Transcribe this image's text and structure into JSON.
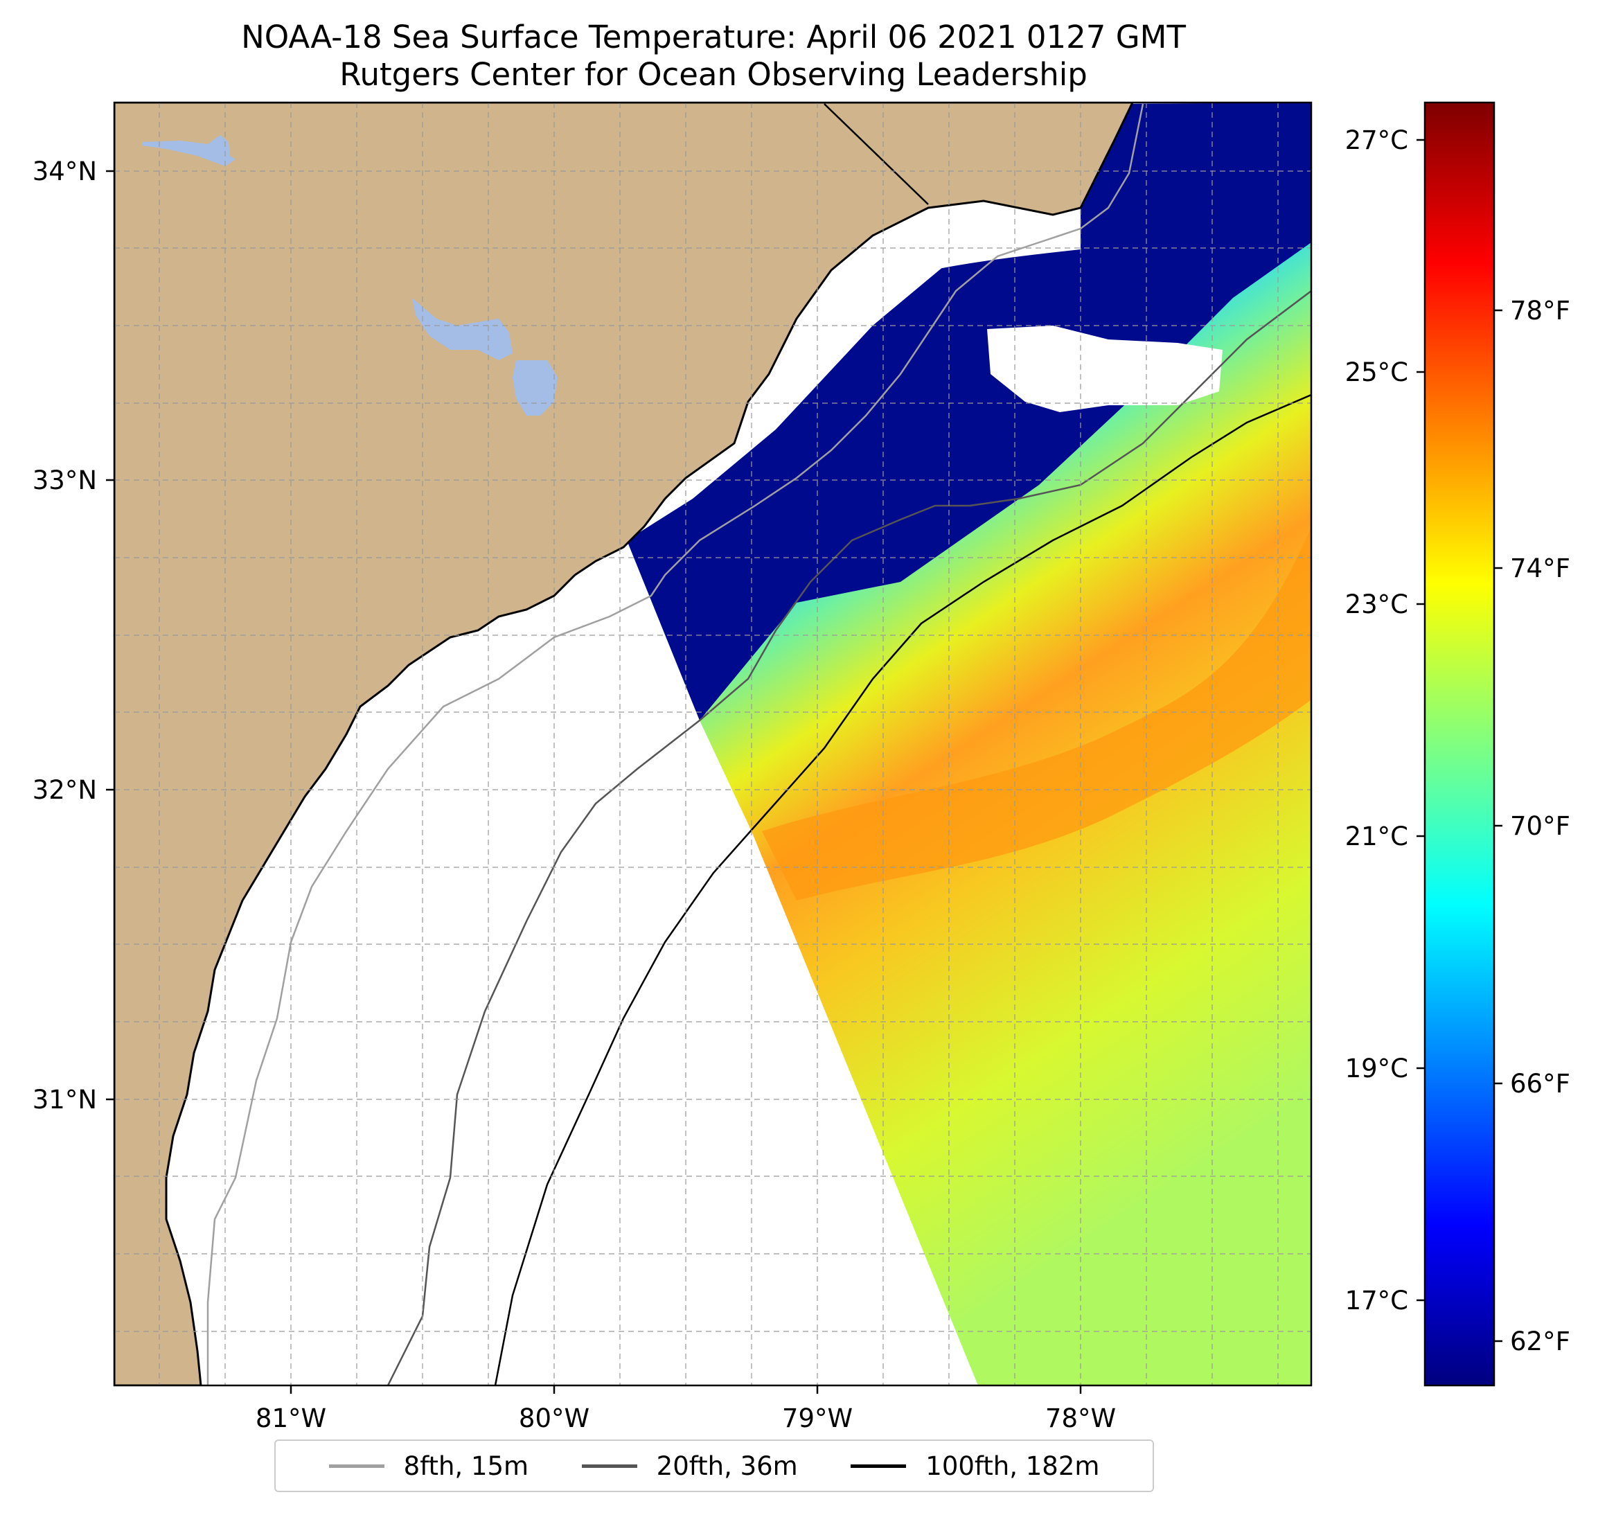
{
  "title": {
    "line1": "NOAA-18 Sea Surface Temperature: April 06 2021 0127 GMT",
    "line2": "Rutgers Center for Ocean Observing Leadership"
  },
  "axes": {
    "lon_ticks": [
      "81°W",
      "80°W",
      "79°W",
      "78°W"
    ],
    "lat_ticks": [
      "34°N",
      "33°N",
      "32°N",
      "31°N"
    ]
  },
  "colorbar": {
    "celsius_ticks": [
      "27°C",
      "25°C",
      "23°C",
      "21°C",
      "19°C",
      "17°C"
    ],
    "fahrenheit_ticks": [
      "78°F",
      "74°F",
      "70°F",
      "66°F",
      "62°F"
    ],
    "colormap": [
      "#00007f",
      "#0000ff",
      "#0080ff",
      "#00ffff",
      "#80ff80",
      "#ffff00",
      "#ff8000",
      "#ff0000",
      "#7f0000"
    ]
  },
  "legend": {
    "items": [
      {
        "label": "8fth, 15m",
        "color": "#a0a0a0"
      },
      {
        "label": "20fth, 36m",
        "color": "#555555"
      },
      {
        "label": "100fth, 182m",
        "color": "#000000"
      }
    ]
  },
  "colors": {
    "land": "#cfb48c",
    "lakes": "#a3bde6",
    "no_data": "#ffffff"
  }
}
